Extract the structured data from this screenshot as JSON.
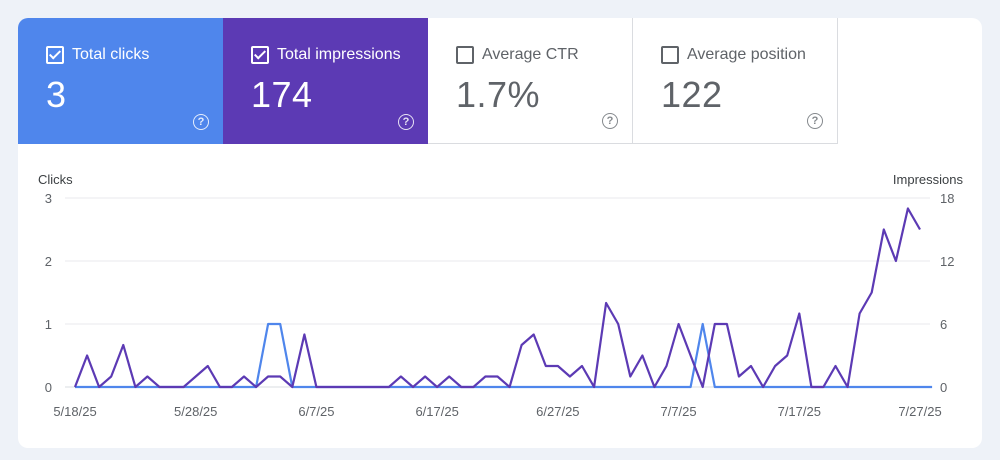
{
  "metrics": [
    {
      "key": "clicks",
      "label": "Total clicks",
      "value": "3",
      "checked": true
    },
    {
      "key": "impr",
      "label": "Total impressions",
      "value": "174",
      "checked": true
    },
    {
      "key": "ctr",
      "label": "Average CTR",
      "value": "1.7%",
      "checked": false
    },
    {
      "key": "pos",
      "label": "Average position",
      "value": "122",
      "checked": false
    }
  ],
  "colors": {
    "clicks": "#4f86ec",
    "impressions": "#5c3ab4",
    "grid": "#e8eaed",
    "axis_text": "#5f6368"
  },
  "chart_data": {
    "type": "line",
    "left_axis_label": "Clicks",
    "right_axis_label": "Impressions",
    "left_ylim": [
      0,
      3
    ],
    "right_ylim": [
      0,
      18
    ],
    "left_ticks": [
      "0",
      "1",
      "2",
      "3"
    ],
    "right_ticks": [
      "0",
      "6",
      "12",
      "18"
    ],
    "x_tick_labels": [
      "5/18/25",
      "5/28/25",
      "6/7/25",
      "6/17/25",
      "6/27/25",
      "7/7/25",
      "7/17/25",
      "7/27/25"
    ],
    "x_tick_indices": [
      0,
      10,
      20,
      30,
      40,
      50,
      60,
      70
    ],
    "series": [
      {
        "name": "Clicks",
        "axis": "left",
        "values": [
          0,
          0,
          0,
          0,
          0,
          0,
          0,
          0,
          0,
          0,
          0,
          0,
          0,
          0,
          0,
          0,
          1,
          1,
          0,
          0,
          0,
          0,
          0,
          0,
          0,
          0,
          0,
          0,
          0,
          0,
          0,
          0,
          0,
          0,
          0,
          0,
          0,
          0,
          0,
          0,
          0,
          0,
          0,
          0,
          0,
          0,
          0,
          0,
          0,
          0,
          0,
          0,
          1,
          0,
          0,
          0,
          0,
          0,
          0,
          0,
          0,
          0,
          0,
          0,
          0,
          0,
          0,
          0,
          0,
          0,
          0,
          0
        ]
      },
      {
        "name": "Impressions",
        "axis": "right",
        "values": [
          0,
          3,
          0,
          1,
          4,
          0,
          1,
          0,
          0,
          0,
          1,
          2,
          0,
          0,
          1,
          0,
          1,
          1,
          0,
          5,
          0,
          0,
          0,
          0,
          0,
          0,
          0,
          1,
          0,
          1,
          0,
          1,
          0,
          0,
          1,
          1,
          0,
          4,
          5,
          2,
          2,
          1,
          2,
          0,
          8,
          6,
          1,
          3,
          0,
          2,
          6,
          3,
          0,
          6,
          6,
          1,
          2,
          0,
          2,
          3,
          7,
          0,
          0,
          2,
          0,
          7,
          9,
          15,
          12,
          17,
          15
        ]
      }
    ]
  }
}
